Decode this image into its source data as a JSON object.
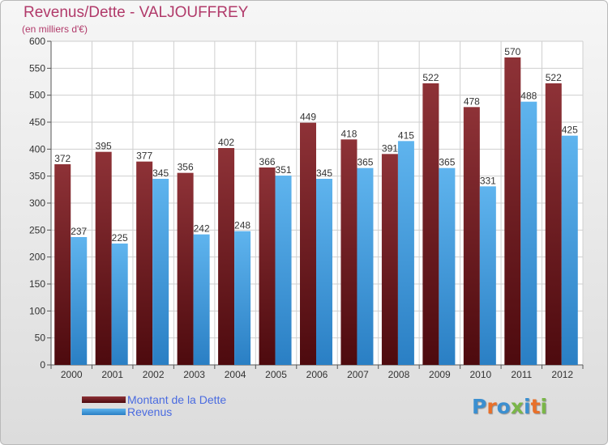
{
  "header": {
    "title": "Revenus/Dette - VALJOUFFREY",
    "subtitle": "(en milliers d'€)"
  },
  "colors": {
    "debt_top": "#8e3237",
    "debt_bottom": "#4d0a0e",
    "revenue_top": "#5fb4ee",
    "revenue_bottom": "#2a7fc4",
    "title": "#b13a6a",
    "legend_text": "#4a6be0",
    "grid": "#cfcfcf"
  },
  "legend": {
    "debt_label": "Montant de la Dette",
    "revenue_label": "Revenus"
  },
  "logo": {
    "text": "Proxiti",
    "letter_colors": [
      "#3b8fd0",
      "#e8702a",
      "#3b8fd0",
      "#7ab648",
      "#3b8fd0",
      "#e8702a",
      "#7ab648"
    ]
  },
  "chart_data": {
    "type": "bar",
    "title": "Revenus/Dette - VALJOUFFREY",
    "subtitle": "(en milliers d'€)",
    "categories": [
      "2000",
      "2001",
      "2002",
      "2003",
      "2004",
      "2005",
      "2006",
      "2007",
      "2008",
      "2009",
      "2010",
      "2011",
      "2012"
    ],
    "series": [
      {
        "name": "Montant de la Dette",
        "values": [
          372,
          395,
          377,
          356,
          402,
          366,
          449,
          418,
          391,
          522,
          478,
          570,
          522
        ]
      },
      {
        "name": "Revenus",
        "values": [
          237,
          225,
          345,
          242,
          248,
          351,
          345,
          365,
          415,
          365,
          331,
          488,
          425
        ]
      }
    ],
    "ylim": [
      0,
      600
    ],
    "yticks": [
      0,
      50,
      100,
      150,
      200,
      250,
      300,
      350,
      400,
      450,
      500,
      550,
      600
    ],
    "grid": true,
    "legend_position": "bottom-left",
    "data_labels": true
  }
}
